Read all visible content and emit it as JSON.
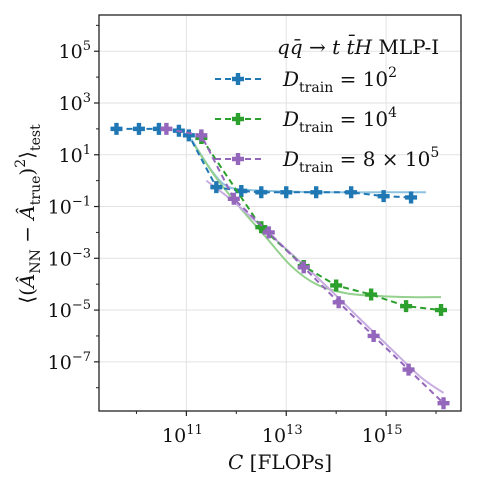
{
  "chart_data": {
    "type": "line",
    "title": "",
    "xlabel": "C [FLOPs]",
    "ylabel": "⟨(Â_NN − Â_true)²⟩_test",
    "xscale": "log",
    "yscale": "log",
    "xlim_exp": [
      9.25,
      16.5
    ],
    "ylim_exp": [
      -8.9,
      6.4
    ],
    "grid": true,
    "x_ticks": [
      {
        "exp": 11,
        "base": "10",
        "sup": "11"
      },
      {
        "exp": 13,
        "base": "10",
        "sup": "13"
      },
      {
        "exp": 15,
        "base": "10",
        "sup": "15"
      }
    ],
    "y_ticks": [
      {
        "exp": 5,
        "base": "10",
        "sup": "5"
      },
      {
        "exp": 3,
        "base": "10",
        "sup": "3"
      },
      {
        "exp": 1,
        "base": "10",
        "sup": "1"
      },
      {
        "exp": -1,
        "base": "10",
        "sup": "−1"
      },
      {
        "exp": -3,
        "base": "10",
        "sup": "−3"
      },
      {
        "exp": -5,
        "base": "10",
        "sup": "−5"
      },
      {
        "exp": -7,
        "base": "10",
        "sup": "−7"
      }
    ],
    "legend": {
      "position": "top-right",
      "title": "q q̄ → t t̄ H  MLP-I",
      "entries": [
        "D_train = 10^2",
        "D_train = 10^4",
        "D_train = 8 × 10^5"
      ]
    },
    "series": [
      {
        "name": "D_train = 10^2",
        "color": "#1f77b4",
        "x_exp": [
          9.6,
          10.05,
          10.45,
          10.85,
          11.05,
          11.6,
          12.1,
          12.5,
          13.0,
          13.6,
          14.3,
          14.95,
          15.5
        ],
        "y_exp": [
          2.0,
          2.0,
          2.0,
          1.93,
          1.75,
          -0.25,
          -0.4,
          -0.45,
          -0.45,
          -0.45,
          -0.45,
          -0.6,
          -0.65
        ],
        "fit": {
          "color": "#8ec3e0",
          "x_exp": [
            11.1,
            11.5,
            11.8,
            12.2,
            13.0,
            14.0,
            15.0,
            15.8
          ],
          "y_exp": [
            1.6,
            0.4,
            -0.2,
            -0.35,
            -0.42,
            -0.45,
            -0.45,
            -0.45
          ]
        }
      },
      {
        "name": "D_train = 10^4",
        "color": "#2ca02c",
        "x_exp": [
          11.3,
          12.5,
          13.35,
          14.0,
          14.7,
          15.4,
          16.1
        ],
        "y_exp": [
          1.65,
          -1.8,
          -3.3,
          -4.05,
          -4.4,
          -4.85,
          -5.0
        ],
        "fit": {
          "color": "#94d08e",
          "x_exp": [
            11.15,
            11.6,
            12.1,
            12.6,
            13.1,
            13.6,
            14.2,
            14.8,
            15.5,
            16.1
          ],
          "y_exp": [
            1.4,
            0.1,
            -1.1,
            -2.2,
            -3.3,
            -4.0,
            -4.35,
            -4.45,
            -4.5,
            -4.5
          ]
        }
      },
      {
        "name": "D_train = 8 × 10^5",
        "color": "#9467bd",
        "x_exp": [
          10.6,
          11.3,
          11.95,
          12.65,
          13.35,
          14.05,
          14.75,
          15.45,
          16.15
        ],
        "y_exp": [
          2.0,
          1.75,
          -0.7,
          -2.0,
          -3.35,
          -4.7,
          -6.0,
          -7.3,
          -8.6
        ],
        "fit": {
          "color": "#c7aee0",
          "x_exp": [
            11.4,
            12.0,
            12.8,
            13.6,
            14.4,
            15.1,
            15.7,
            16.15
          ],
          "y_exp": [
            0.0,
            -0.9,
            -2.3,
            -3.7,
            -5.2,
            -6.5,
            -7.6,
            -8.2
          ]
        }
      }
    ]
  }
}
